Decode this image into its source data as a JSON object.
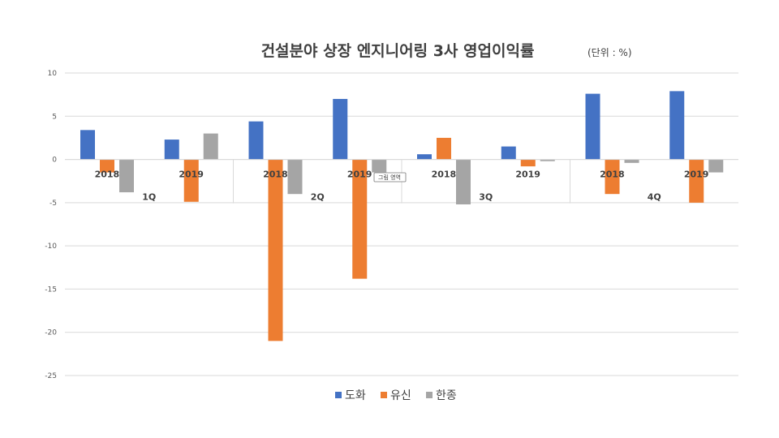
{
  "chart_data": {
    "type": "bar",
    "title": "건설분야 상장 엔지니어링 3사 영업이익률",
    "unit": "(단위 : %)",
    "ylim": [
      -25,
      10
    ],
    "yticks": [
      "10",
      "5",
      "0",
      "-5",
      "-10",
      "-15",
      "-20",
      "-25"
    ],
    "grid": true,
    "legend_position": "bottom",
    "groups": [
      "1Q",
      "2Q",
      "3Q",
      "4Q"
    ],
    "years": [
      "2018",
      "2019"
    ],
    "categories": [
      "1Q 2018",
      "1Q 2019",
      "2Q 2018",
      "2Q 2019",
      "3Q 2018",
      "3Q 2019",
      "4Q 2018",
      "4Q 2019"
    ],
    "series": [
      {
        "name": "도화",
        "color": "#4472c4",
        "values": [
          3.4,
          2.3,
          4.4,
          7.0,
          0.6,
          1.5,
          7.6,
          7.9
        ]
      },
      {
        "name": "유신",
        "color": "#ed7d31",
        "values": [
          -1.5,
          -4.9,
          -21.0,
          -13.8,
          2.5,
          -0.8,
          -4.0,
          -5.0
        ]
      },
      {
        "name": "한종",
        "color": "#a5a5a5",
        "values": [
          -3.8,
          3.0,
          -4.0,
          -1.5,
          -5.2,
          -0.2,
          -0.4,
          -1.5
        ]
      }
    ],
    "tooltip": "그림 영역"
  }
}
